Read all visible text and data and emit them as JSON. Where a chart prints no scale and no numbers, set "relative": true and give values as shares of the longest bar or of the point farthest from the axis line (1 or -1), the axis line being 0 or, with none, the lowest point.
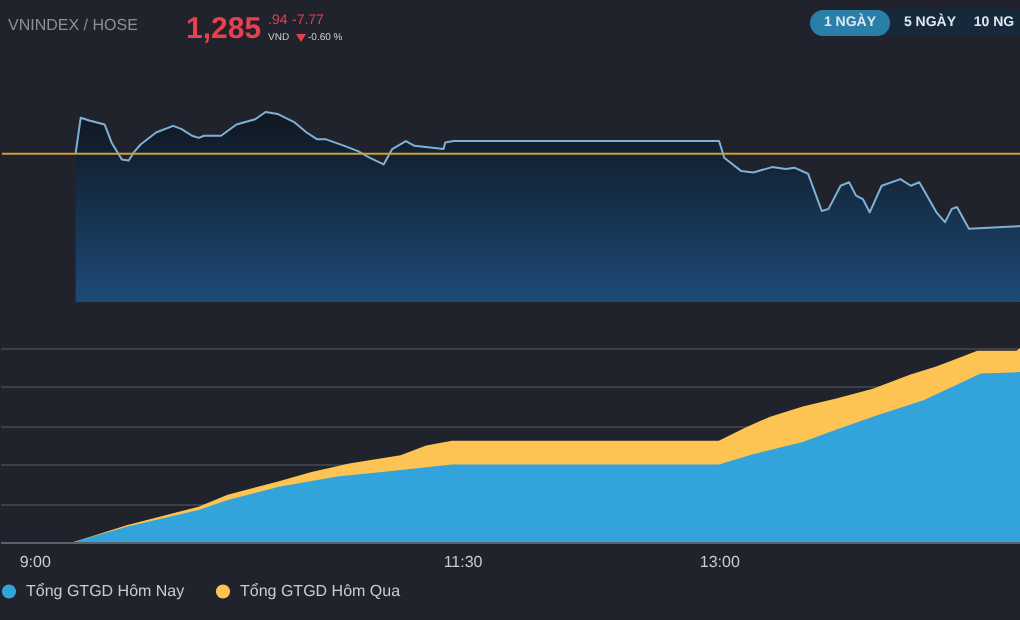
{
  "chart_data": [
    {
      "type": "area",
      "title": "VNINDEX / HOSE",
      "annotations": [
        "1,285",
        ".94",
        "VND",
        "-7.77",
        "-0.60 %",
        "1 NGÀY",
        "5 NGÀY",
        "10 NG"
      ],
      "relative": true,
      "xlim": [
        8.8,
        14.76
      ],
      "series": [
        {
          "color": "#7fb0d6",
          "x": [
            9.23,
            9.26,
            9.31,
            9.4,
            9.44,
            9.5,
            9.54,
            9.57,
            9.61,
            9.7,
            9.8,
            9.85,
            9.91,
            9.95,
            9.98,
            10.08,
            10.17,
            10.28,
            10.34,
            10.41,
            10.51,
            10.58,
            10.64,
            10.69,
            10.8,
            10.88,
            10.95,
            11.03,
            11.08,
            11.16,
            11.21,
            11.29,
            11.38,
            11.39,
            11.44,
            12.99,
            13.02,
            13.12,
            13.19,
            13.3,
            13.38,
            13.43,
            13.51,
            13.55,
            13.59,
            13.63,
            13.7,
            13.75,
            13.79,
            13.83,
            13.87,
            13.94,
            14.05,
            14.11,
            14.16,
            14.26,
            14.31,
            14.35,
            14.38,
            14.45,
            14.76
          ],
          "values": [
            0.78,
            0.97,
            0.955,
            0.934,
            0.84,
            0.75,
            0.745,
            0.787,
            0.829,
            0.892,
            0.927,
            0.91,
            0.875,
            0.864,
            0.875,
            0.875,
            0.934,
            0.962,
            1.0,
            0.99,
            0.945,
            0.892,
            0.857,
            0.857,
            0.822,
            0.794,
            0.759,
            0.724,
            0.805,
            0.847,
            0.822,
            0.815,
            0.805,
            0.84,
            0.847,
            0.847,
            0.759,
            0.689,
            0.682,
            0.71,
            0.7,
            0.707,
            0.675,
            0.577,
            0.479,
            0.49,
            0.612,
            0.63,
            0.56,
            0.542,
            0.472,
            0.612,
            0.647,
            0.612,
            0.63,
            0.472,
            0.42,
            0.49,
            0.5,
            0.385,
            0.4
          ]
        }
      ],
      "ref_lines": [
        {
          "axis": "y",
          "value": 0.78,
          "color": "#c9a23a"
        }
      ]
    },
    {
      "type": "area",
      "relative": true,
      "grid": "y",
      "legend": "bottom",
      "xlim": [
        8.8,
        14.76
      ],
      "xticks": [
        {
          "value": 9,
          "label": "9:00"
        },
        {
          "value": 11.5,
          "label": "11:30"
        },
        {
          "value": 13,
          "label": "13:00"
        }
      ],
      "series": [
        {
          "name": "Tổng GTGD Hôm Nay",
          "color": "#33a3dc",
          "x": [
            9.23,
            9.54,
            9.96,
            10.13,
            10.43,
            10.77,
            11.06,
            11.44,
            13.0,
            13.19,
            13.49,
            13.68,
            13.9,
            14.2,
            14.53,
            14.76
          ],
          "values": [
            0,
            0.079,
            0.165,
            0.216,
            0.285,
            0.337,
            0.364,
            0.399,
            0.399,
            0.45,
            0.515,
            0.577,
            0.646,
            0.732,
            0.869,
            0.876
          ]
        },
        {
          "name": "Tổng GTGD Hôm Qua",
          "color": "#fdc453",
          "x": [
            9.23,
            9.54,
            9.96,
            10.13,
            10.43,
            10.62,
            10.84,
            11.14,
            11.29,
            11.44,
            13.0,
            13.15,
            13.3,
            13.49,
            13.68,
            13.9,
            14.12,
            14.27,
            14.42,
            14.51,
            14.74,
            14.76
          ],
          "values": [
            0,
            0.086,
            0.182,
            0.244,
            0.313,
            0.361,
            0.405,
            0.447,
            0.498,
            0.522,
            0.522,
            0.588,
            0.646,
            0.698,
            0.739,
            0.79,
            0.863,
            0.904,
            0.955,
            0.986,
            0.986,
            1
          ]
        }
      ]
    }
  ]
}
